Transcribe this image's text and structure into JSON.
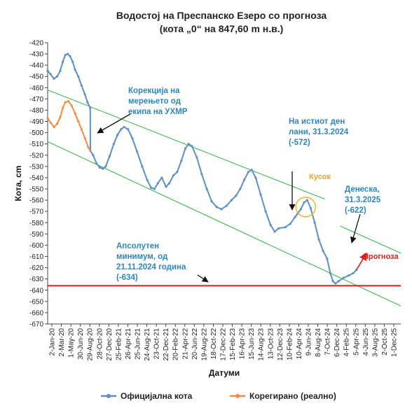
{
  "chart_data": {
    "type": "line",
    "title": "Водостој на Преспанско Езеро со прогноза",
    "subtitle": "(кота „0“ на 847,60 m н.в.)",
    "xlabel": "Датуми",
    "ylabel": "Кота, cm",
    "ylim": [
      -670,
      -420
    ],
    "yticks": [
      -420,
      -430,
      -440,
      -450,
      -460,
      -470,
      -480,
      -490,
      -500,
      -510,
      -520,
      -530,
      -540,
      -550,
      -560,
      -570,
      -580,
      -590,
      -600,
      -610,
      -620,
      -630,
      -640,
      -650,
      -660,
      -670
    ],
    "x_tick_labels": [
      "2-Jan-20",
      "2-Mar-20",
      "1-May-20",
      "30-Jun-20",
      "29-Aug-20",
      "28-Oct-20",
      "27-Dec-20",
      "25-Feb-21",
      "26-Apr-21",
      "25-Jun-21",
      "24-Aug-21",
      "23-Oct-21",
      "22-Dec-21",
      "20-Feb-22",
      "21-Apr-22",
      "20-Jun-22",
      "19-Aug-22",
      "18-Oct-22",
      "17-Dec-22",
      "15-Feb-23",
      "16-Apr-23",
      "15-Jun-23",
      "14-Aug-23",
      "13-Oct-23",
      "12-Dec-23",
      "10-Feb-24",
      "10-Apr-24",
      "9-Jun-24",
      "8-Aug-24",
      "7-Oct-24",
      "6-Dec-24",
      "4-Feb-25",
      "5-Apr-25",
      "4-Jun-25",
      "3-Aug-25",
      "2-Oct-25",
      "1-Dec-25"
    ],
    "legend": {
      "position": "bottom"
    },
    "grid": false,
    "series": [
      {
        "name": "Официјална кота",
        "color": "#5b8fc9",
        "points": [
          [
            "2020-01-02",
            -445
          ],
          [
            "2020-01-20",
            -448
          ],
          [
            "2020-02-10",
            -452
          ],
          [
            "2020-03-01",
            -450
          ],
          [
            "2020-03-20",
            -445
          ],
          [
            "2020-04-05",
            -437
          ],
          [
            "2020-04-20",
            -431
          ],
          [
            "2020-05-05",
            -430
          ],
          [
            "2020-05-20",
            -432
          ],
          [
            "2020-06-05",
            -437
          ],
          [
            "2020-06-20",
            -444
          ],
          [
            "2020-07-10",
            -450
          ],
          [
            "2020-07-30",
            -458
          ],
          [
            "2020-08-20",
            -466
          ],
          [
            "2020-09-05",
            -473
          ],
          [
            "2020-09-22",
            -478
          ],
          [
            "2020-09-23",
            -516
          ],
          [
            "2020-10-10",
            -520
          ],
          [
            "2020-10-30",
            -527
          ],
          [
            "2020-11-20",
            -531
          ],
          [
            "2020-12-10",
            -532
          ],
          [
            "2020-12-27",
            -530
          ],
          [
            "2021-01-20",
            -521
          ],
          [
            "2021-02-15",
            -510
          ],
          [
            "2021-03-10",
            -502
          ],
          [
            "2021-04-01",
            -497
          ],
          [
            "2021-04-20",
            -495
          ],
          [
            "2021-05-15",
            -497
          ],
          [
            "2021-06-10",
            -505
          ],
          [
            "2021-07-10",
            -517
          ],
          [
            "2021-08-10",
            -530
          ],
          [
            "2021-09-10",
            -542
          ],
          [
            "2021-10-05",
            -549
          ],
          [
            "2021-10-25",
            -550
          ],
          [
            "2021-11-15",
            -545
          ],
          [
            "2021-12-10",
            -540
          ],
          [
            "2022-01-05",
            -548
          ],
          [
            "2022-01-25",
            -545
          ],
          [
            "2022-02-20",
            -538
          ],
          [
            "2022-03-15",
            -535
          ],
          [
            "2022-04-10",
            -525
          ],
          [
            "2022-05-05",
            -514
          ],
          [
            "2022-05-25",
            -510
          ],
          [
            "2022-06-15",
            -512
          ],
          [
            "2022-07-15",
            -522
          ],
          [
            "2022-08-15",
            -537
          ],
          [
            "2022-09-15",
            -550
          ],
          [
            "2022-10-15",
            -561
          ],
          [
            "2022-11-15",
            -566
          ],
          [
            "2022-12-15",
            -568
          ],
          [
            "2023-01-15",
            -565
          ],
          [
            "2023-02-15",
            -560
          ],
          [
            "2023-03-15",
            -556
          ],
          [
            "2023-04-10",
            -550
          ],
          [
            "2023-05-05",
            -542
          ],
          [
            "2023-05-30",
            -535
          ],
          [
            "2023-06-20",
            -533
          ],
          [
            "2023-07-15",
            -540
          ],
          [
            "2023-08-15",
            -555
          ],
          [
            "2023-09-15",
            -570
          ],
          [
            "2023-10-15",
            -582
          ],
          [
            "2023-11-10",
            -588
          ],
          [
            "2023-12-05",
            -585
          ],
          [
            "2024-01-15",
            -584
          ],
          [
            "2024-02-15",
            -581
          ],
          [
            "2024-03-15",
            -575
          ],
          [
            "2024-03-31",
            -572
          ],
          [
            "2024-04-20",
            -568
          ],
          [
            "2024-05-10",
            -562
          ],
          [
            "2024-05-30",
            -560
          ],
          [
            "2024-06-20",
            -567
          ],
          [
            "2024-07-15",
            -580
          ],
          [
            "2024-08-10",
            -595
          ],
          [
            "2024-09-05",
            -605
          ],
          [
            "2024-09-30",
            -612
          ],
          [
            "2024-10-20",
            -625
          ],
          [
            "2024-11-05",
            -632
          ],
          [
            "2024-11-21",
            -634
          ],
          [
            "2024-12-10",
            -632
          ],
          [
            "2025-01-10",
            -629
          ],
          [
            "2025-02-10",
            -627
          ],
          [
            "2025-03-10",
            -625
          ],
          [
            "2025-03-31",
            -622
          ]
        ]
      },
      {
        "name": "Корегирано (реално)",
        "color": "#f08c46",
        "points": [
          [
            "2020-01-02",
            -487
          ],
          [
            "2020-01-20",
            -491
          ],
          [
            "2020-02-10",
            -495
          ],
          [
            "2020-03-01",
            -492
          ],
          [
            "2020-03-20",
            -486
          ],
          [
            "2020-04-05",
            -478
          ],
          [
            "2020-04-20",
            -473
          ],
          [
            "2020-05-10",
            -472
          ],
          [
            "2020-05-30",
            -476
          ],
          [
            "2020-06-20",
            -483
          ],
          [
            "2020-07-10",
            -490
          ],
          [
            "2020-07-30",
            -497
          ],
          [
            "2020-08-20",
            -505
          ],
          [
            "2020-09-10",
            -513
          ],
          [
            "2020-09-22",
            -516
          ]
        ]
      }
    ],
    "trend_lines": [
      {
        "from": [
          "2020-01-02",
          -462
        ],
        "to": [
          "2024-09-15",
          -559
        ]
      },
      {
        "from": [
          "2020-01-02",
          -508
        ],
        "to": [
          "2025-12-31",
          -654
        ]
      },
      {
        "from": [
          "2024-12-20",
          -583
        ],
        "to": [
          "2025-12-31",
          -607
        ]
      }
    ],
    "minimum_line": {
      "value": -636
    },
    "forecast_arrow": {
      "from": [
        "2025-03-31",
        -622
      ],
      "to": [
        "2025-06-01",
        -607
      ]
    },
    "annotations": [
      {
        "lines": [
          "Корекција на",
          "мерењето од",
          "екипа на УХМР"
        ]
      },
      {
        "lines": [
          "На истиот ден",
          "лани, 31.3.2024",
          "(-572)"
        ]
      },
      {
        "lines": [
          "Кусок"
        ]
      },
      {
        "lines": [
          "Денеска,",
          "31.3.2025",
          "(-622)"
        ]
      },
      {
        "lines": [
          "Апсолутен",
          "минимум, од",
          "21.11.2024  година",
          "(-634)"
        ]
      },
      {
        "lines": [
          "Прогноза"
        ]
      }
    ]
  }
}
